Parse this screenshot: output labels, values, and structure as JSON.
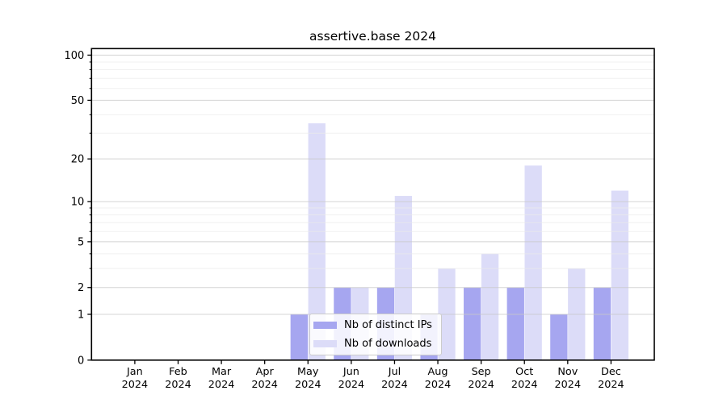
{
  "figure": {
    "title": "assertive.base 2024"
  },
  "legend": {
    "items": [
      {
        "label": "Nb of distinct IPs"
      },
      {
        "label": "Nb of downloads"
      }
    ]
  },
  "colors": {
    "ips_bar": "#a6a6f0",
    "downloads_bar": "#dcdcf8",
    "grid_major": "#c9c9c9",
    "grid_minor": "#ebebeb",
    "axis": "#000000",
    "legend_border": "#cccccc",
    "background": "#ffffff"
  },
  "chart_data": {
    "type": "bar",
    "title": "assertive.base 2024",
    "categories": [
      "Jan 2024",
      "Feb 2024",
      "Mar 2024",
      "Apr 2024",
      "May 2024",
      "Jun 2024",
      "Jul 2024",
      "Aug 2024",
      "Sep 2024",
      "Oct 2024",
      "Nov 2024",
      "Dec 2024"
    ],
    "x_labels": [
      {
        "month": "Jan",
        "year": "2024"
      },
      {
        "month": "Feb",
        "year": "2024"
      },
      {
        "month": "Mar",
        "year": "2024"
      },
      {
        "month": "Apr",
        "year": "2024"
      },
      {
        "month": "May",
        "year": "2024"
      },
      {
        "month": "Jun",
        "year": "2024"
      },
      {
        "month": "Jul",
        "year": "2024"
      },
      {
        "month": "Aug",
        "year": "2024"
      },
      {
        "month": "Sep",
        "year": "2024"
      },
      {
        "month": "Oct",
        "year": "2024"
      },
      {
        "month": "Nov",
        "year": "2024"
      },
      {
        "month": "Dec",
        "year": "2024"
      }
    ],
    "series": [
      {
        "name": "Nb of distinct IPs",
        "color": "#a6a6f0",
        "values": [
          0,
          0,
          0,
          0,
          1,
          2,
          2,
          1,
          2,
          2,
          1,
          2
        ]
      },
      {
        "name": "Nb of downloads",
        "color": "#dcdcf8",
        "values": [
          0,
          0,
          0,
          0,
          35,
          2,
          11,
          3,
          4,
          18,
          3,
          12
        ]
      }
    ],
    "yscale": "log1p",
    "ylim": [
      0,
      110
    ],
    "y_major_ticks": [
      0,
      1,
      2,
      5,
      10,
      20,
      50,
      100
    ],
    "y_minor_ticks": [
      3,
      4,
      6,
      7,
      8,
      9,
      30,
      40,
      60,
      70,
      80,
      90
    ],
    "grid": true,
    "legend_position": "lower center"
  }
}
